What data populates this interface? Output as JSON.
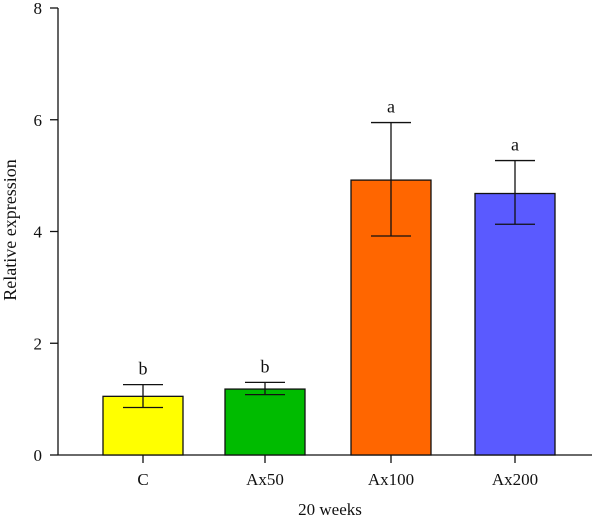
{
  "chart_data": {
    "type": "bar",
    "title": "",
    "xlabel": "20 weeks",
    "ylabel": "Relative expression",
    "ylim": [
      0,
      8
    ],
    "yticks": [
      0,
      2,
      4,
      6,
      8
    ],
    "grid": false,
    "categories": [
      "C",
      "Ax50",
      "Ax100",
      "Ax200"
    ],
    "values": [
      1.05,
      1.18,
      4.92,
      4.68
    ],
    "errors_upper": [
      1.26,
      1.3,
      5.95,
      5.27
    ],
    "errors_lower": [
      0.85,
      1.08,
      3.92,
      4.13
    ],
    "significance_labels": [
      "b",
      "b",
      "a",
      "a"
    ],
    "colors": [
      "#ffff00",
      "#00bb00",
      "#ff6600",
      "#5a5aff"
    ]
  }
}
